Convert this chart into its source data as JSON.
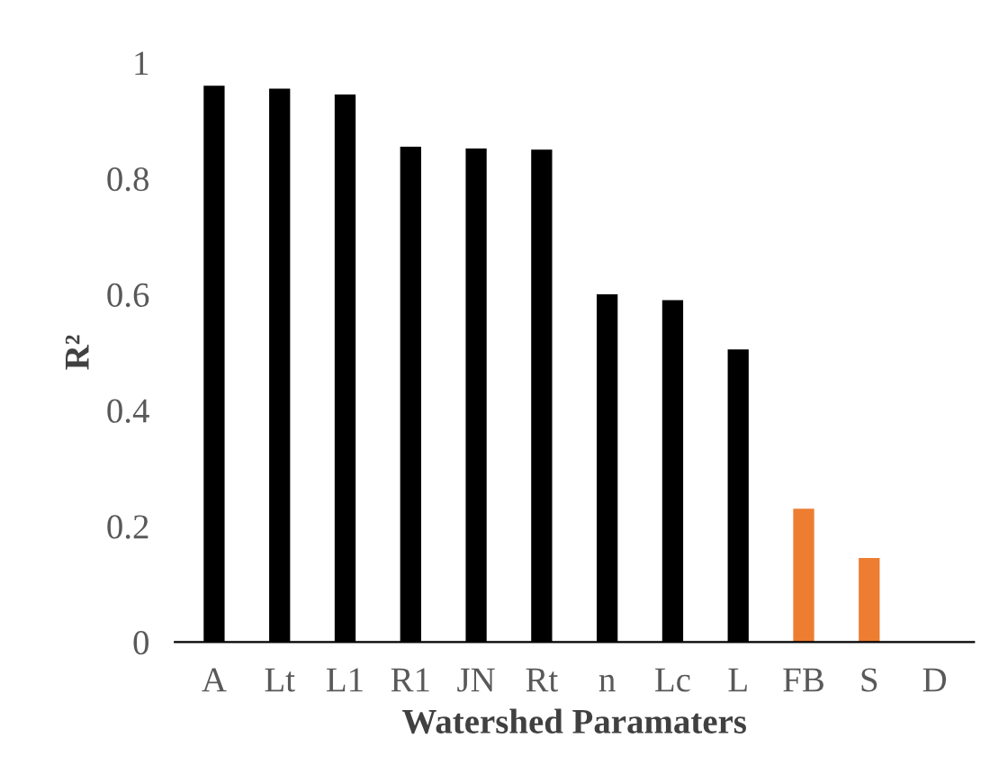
{
  "chart_data": {
    "type": "bar",
    "xlabel": "Watershed Paramaters",
    "ylabel": "R²",
    "categories": [
      "A",
      "Lt",
      "L1",
      "R1",
      "JN",
      "Rt",
      "n",
      "Lc",
      "L",
      "FB",
      "S",
      "D"
    ],
    "values": [
      0.96,
      0.955,
      0.945,
      0.855,
      0.852,
      0.85,
      0.6,
      0.59,
      0.505,
      0.23,
      0.145,
      0
    ],
    "colors": [
      "#000000",
      "#000000",
      "#000000",
      "#000000",
      "#000000",
      "#000000",
      "#000000",
      "#000000",
      "#000000",
      "#ed7d31",
      "#ed7d31",
      "#ed7d31"
    ],
    "ylim": [
      0,
      1
    ],
    "yticks": [
      0,
      {
        "value": 0.2,
        "label": "0.2"
      },
      {
        "value": 0.4,
        "label": "0.4"
      },
      {
        "value": 0.6,
        "label": "0.6"
      },
      {
        "value": 0.8,
        "label": "0.8"
      },
      1
    ],
    "grid": false
  }
}
